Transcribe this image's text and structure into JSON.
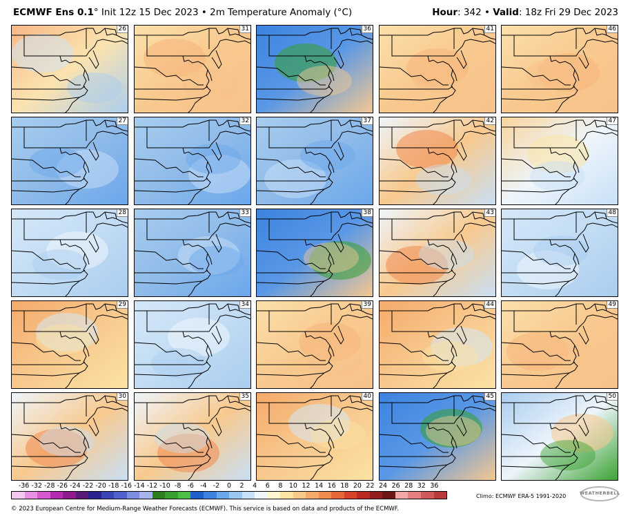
{
  "header": {
    "product": "ECMWF Ens 0.1",
    "degree": "°",
    "init": "Init 12z 15 Dec 2023",
    "separator": "•",
    "field": "2m Temperature Anomaly (°C)",
    "hour_label": "Hour",
    "hour_value": ": 342",
    "valid_label": "Valid",
    "valid_value": ": 18z Fri 29 Dec 2023"
  },
  "panels": [
    {
      "member": "26",
      "icon": "map-panel",
      "theme": "warm-west-cool-east"
    },
    {
      "member": "31",
      "icon": "map-panel",
      "theme": "warm"
    },
    {
      "member": "36",
      "icon": "map-panel",
      "theme": "cold-green"
    },
    {
      "member": "41",
      "icon": "map-panel",
      "theme": "warm"
    },
    {
      "member": "46",
      "icon": "map-panel",
      "theme": "warm"
    },
    {
      "member": "27",
      "icon": "map-panel",
      "theme": "cool"
    },
    {
      "member": "32",
      "icon": "map-panel",
      "theme": "cool"
    },
    {
      "member": "37",
      "icon": "map-panel",
      "theme": "cool"
    },
    {
      "member": "42",
      "icon": "map-panel",
      "theme": "warm-band"
    },
    {
      "member": "47",
      "icon": "map-panel",
      "theme": "mixed-warm"
    },
    {
      "member": "28",
      "icon": "map-panel",
      "theme": "cool-light"
    },
    {
      "member": "33",
      "icon": "map-panel",
      "theme": "cool"
    },
    {
      "member": "38",
      "icon": "map-panel",
      "theme": "cold-green"
    },
    {
      "member": "43",
      "icon": "map-panel",
      "theme": "warm-band"
    },
    {
      "member": "48",
      "icon": "map-panel",
      "theme": "cool-light"
    },
    {
      "member": "29",
      "icon": "map-panel",
      "theme": "warm-north"
    },
    {
      "member": "34",
      "icon": "map-panel",
      "theme": "cool-light"
    },
    {
      "member": "39",
      "icon": "map-panel",
      "theme": "warm"
    },
    {
      "member": "44",
      "icon": "map-panel",
      "theme": "warm-north"
    },
    {
      "member": "49",
      "icon": "map-panel",
      "theme": "warm"
    },
    {
      "member": "30",
      "icon": "map-panel",
      "theme": "warm-band"
    },
    {
      "member": "35",
      "icon": "map-panel",
      "theme": "warm-band"
    },
    {
      "member": "40",
      "icon": "map-panel",
      "theme": "warm-north"
    },
    {
      "member": "45",
      "icon": "map-panel",
      "theme": "cold-green"
    },
    {
      "member": "50",
      "icon": "map-panel",
      "theme": "cool-green-south"
    }
  ],
  "colorbar": {
    "ticks": [
      "-36",
      "-32",
      "-28",
      "-26",
      "-24",
      "-22",
      "-20",
      "-18",
      "-16",
      "-14",
      "-12",
      "-10",
      "-8",
      "-6",
      "-4",
      "-2",
      "0",
      "2",
      "4",
      "6",
      "8",
      "10",
      "12",
      "14",
      "16",
      "18",
      "20",
      "22",
      "24",
      "26",
      "28",
      "32",
      "36"
    ],
    "colors": [
      "#f4c7f0",
      "#e98fe2",
      "#d659cf",
      "#b52bb0",
      "#8e1b8e",
      "#5a1a78",
      "#2a238f",
      "#3a45b8",
      "#5060cc",
      "#7d8ee0",
      "#a6b4ee",
      "#2e7d1f",
      "#37a02e",
      "#4cc042",
      "#1f5fc9",
      "#3c84e0",
      "#6aa6ec",
      "#9cc6f2",
      "#c7e0f7",
      "#eef5fb",
      "#fdf6cf",
      "#fbe3a4",
      "#f8c989",
      "#f5aa6a",
      "#f18a4e",
      "#e8663a",
      "#d6432a",
      "#b82a22",
      "#931c1c",
      "#6e1515",
      "#f2a7a7",
      "#e57f7f",
      "#d05a5a",
      "#b83c3c"
    ],
    "accent_colors": {
      "cold": "#3c84e0",
      "very_cold_green": "#37a02e",
      "warm": "#f5aa6a",
      "very_warm": "#d6432a"
    }
  },
  "footer": {
    "climo": "Climo: ECMWF ERA-5 1991-2020",
    "logo_text": "WEATHERBELL",
    "copyright": "© 2023 European Centre for Medium-Range Weather Forecasts (ECMWF). This service is based on data and products of the ECMWF."
  }
}
